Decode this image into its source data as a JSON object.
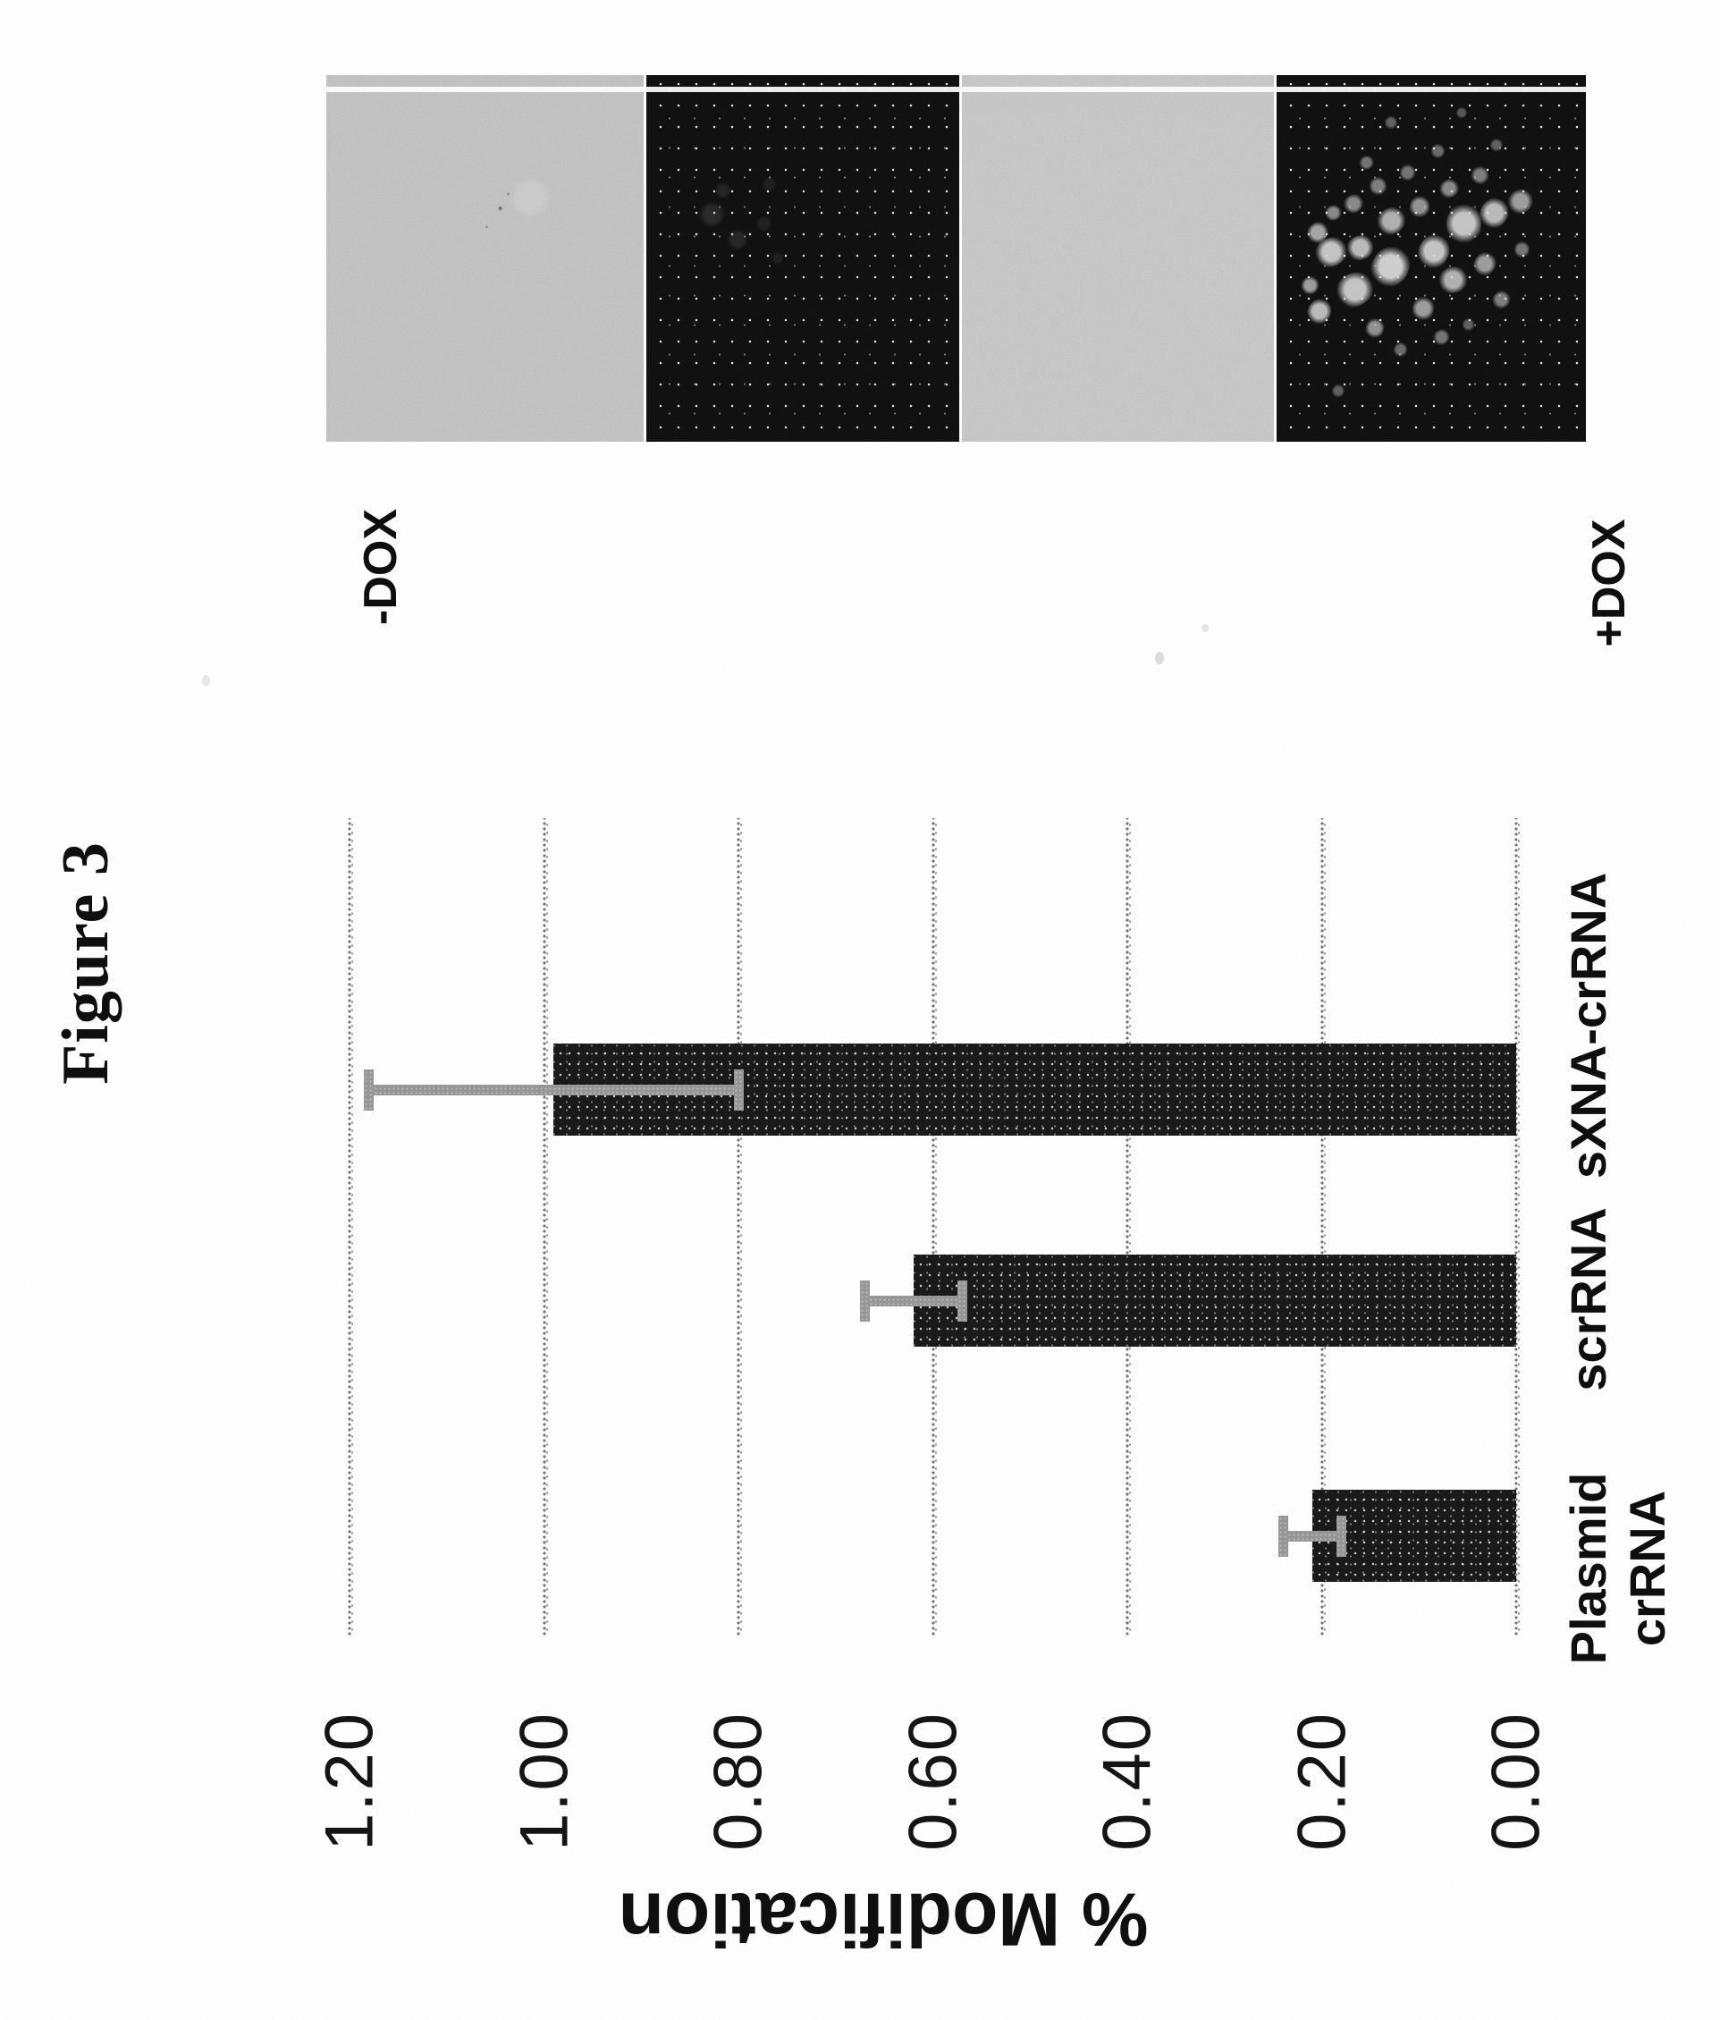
{
  "figure_label": "Figure 3",
  "chart_data": {
    "type": "bar",
    "title": "",
    "categories": [
      "Plasmid crRNA",
      "scrRNA",
      "sXNA-crRNA"
    ],
    "values": [
      0.21,
      0.62,
      0.99
    ],
    "error_bars": [
      0.03,
      0.05,
      0.19
    ],
    "ylabel": "% Modification",
    "xlabel": "",
    "ytick_labels": [
      "0.00",
      "0.20",
      "0.40",
      "0.60",
      "0.80",
      "1.00",
      "1.20"
    ],
    "ylim": [
      0,
      1.2
    ],
    "grid": "dotted horizontal gridlines, no axis lines",
    "legend": "none",
    "bar_color": "#161616",
    "error_bar_color": "#959595",
    "page_rotation": "entire landscape figure rotated 90 degrees counterclockwise on portrait page"
  },
  "micrographs": {
    "row_labels": {
      "top": "-DOX",
      "bottom": "+DOX"
    },
    "panels": [
      {
        "name": "brightfield-minus-dox"
      },
      {
        "name": "fluorescence-minus-dox-dark"
      },
      {
        "name": "brightfield-plus-dox"
      },
      {
        "name": "fluorescence-plus-dox-bright-cells"
      }
    ]
  }
}
